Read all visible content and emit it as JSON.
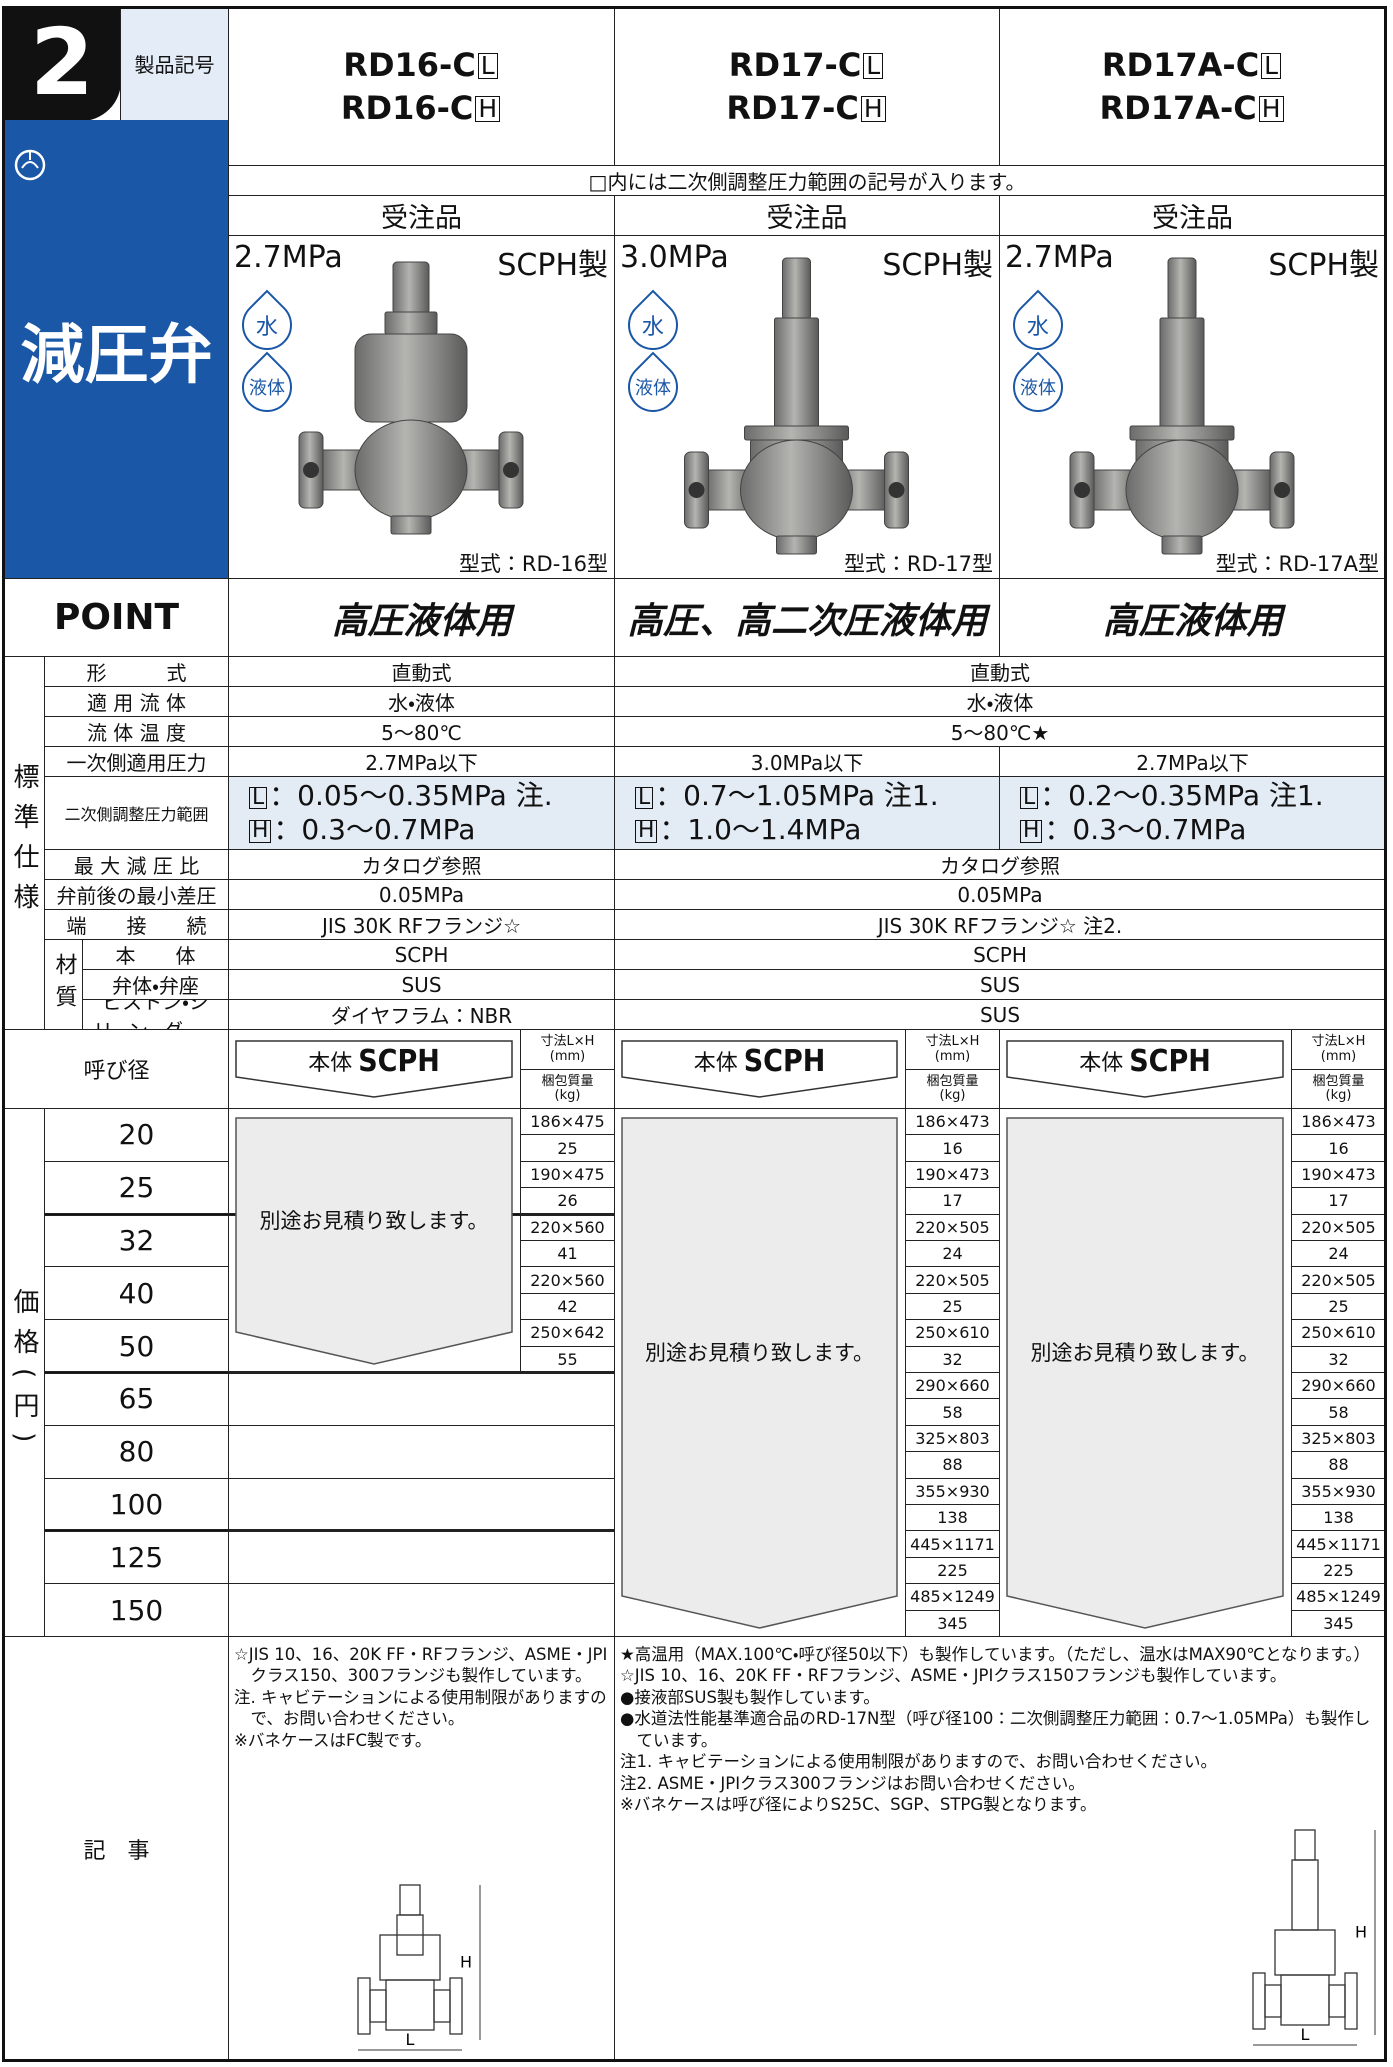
{
  "badge": {
    "number": "2",
    "label": "製品記号"
  },
  "category": "減圧弁",
  "products": [
    {
      "codes": [
        {
          "prefix": "RD16-C",
          "box": "L"
        },
        {
          "prefix": "RD16-C",
          "box": "H"
        }
      ],
      "order": "受注品",
      "pressure": "2.7MPa",
      "material": "SCPH製",
      "media": [
        "水",
        "液体"
      ],
      "model": "型式：RD-16型",
      "point": "高圧液体用"
    },
    {
      "codes": [
        {
          "prefix": "RD17-C",
          "box": "L"
        },
        {
          "prefix": "RD17-C",
          "box": "H"
        }
      ],
      "order": "受注品",
      "pressure": "3.0MPa",
      "material": "SCPH製",
      "media": [
        "水",
        "液体"
      ],
      "model": "型式：RD-17型",
      "point": "高圧、高二次圧液体用"
    },
    {
      "codes": [
        {
          "prefix": "RD17A-C",
          "box": "L"
        },
        {
          "prefix": "RD17A-C",
          "box": "H"
        }
      ],
      "order": "受注品",
      "pressure": "2.7MPa",
      "material": "SCPH製",
      "media": [
        "水",
        "液体"
      ],
      "model": "型式：RD-17A型",
      "point": "高圧液体用"
    }
  ],
  "box_note": "□内には二次側調整圧力範囲の記号が入ります。",
  "point_label": "POINT",
  "spec": {
    "label": "標準仕様",
    "material_label": "材質",
    "rows": [
      {
        "label": "形　　　式",
        "cells": [
          "直動式",
          "直動式"
        ]
      },
      {
        "label": "適 用 流 体",
        "cells": [
          "水・液体",
          "水・液体"
        ]
      },
      {
        "label": "流 体 温 度",
        "cells": [
          "5〜80℃",
          "5〜80℃★"
        ]
      },
      {
        "label": "一次側適用圧力",
        "cells": [
          "2.7MPa以下",
          "3.0MPa以下",
          "2.7MPa以下"
        ]
      },
      {
        "label": "二次側調整圧力範囲",
        "cells": [
          [
            {
              "box": "L",
              "text": "：0.05〜0.35MPa 注."
            },
            {
              "box": "H",
              "text": "：0.3〜0.7MPa"
            }
          ],
          [
            {
              "box": "L",
              "text": "：0.7〜1.05MPa 注1."
            },
            {
              "box": "H",
              "text": "：1.0〜1.4MPa"
            }
          ],
          [
            {
              "box": "L",
              "text": "：0.2〜0.35MPa 注1."
            },
            {
              "box": "H",
              "text": "：0.3〜0.7MPa"
            }
          ]
        ]
      },
      {
        "label": "最 大 減 圧 比",
        "cells": [
          "カタログ参照",
          "カタログ参照"
        ]
      },
      {
        "label": "弁前後の最小差圧",
        "cells": [
          "0.05MPa",
          "0.05MPa"
        ]
      },
      {
        "label": "端　　接　　続",
        "cells": [
          "JIS 30K RFフランジ☆",
          "JIS 30K RFフランジ☆ 注2."
        ]
      }
    ],
    "material_rows": [
      {
        "label": "本　　体",
        "cells": [
          "SCPH",
          "SCPH"
        ]
      },
      {
        "label": "弁体・弁座",
        "cells": [
          "SUS",
          "SUS"
        ]
      },
      {
        "label": "ピストン・シリンダー",
        "cells": [
          "ダイヤフラム：NBR",
          "SUS"
        ]
      }
    ]
  },
  "price": {
    "side_label": "価格(円)",
    "size_label": "呼び径",
    "body_label": "本体",
    "body_material": "SCPH",
    "dim_header": [
      "寸法L×H",
      "(mm)"
    ],
    "weight_header": [
      "梱包質量",
      "(kg)"
    ],
    "sizes": [
      "20",
      "25",
      "32",
      "40",
      "50",
      "65",
      "80",
      "100",
      "125",
      "150"
    ],
    "columns": [
      {
        "quote": "別途お見積り致します。",
        "rows": [
          [
            "186×475",
            "25"
          ],
          [
            "190×475",
            "26"
          ],
          [
            "220×560",
            "41"
          ],
          [
            "220×560",
            "42"
          ],
          [
            "250×642",
            "55"
          ]
        ]
      },
      {
        "quote": "別途お見積り致します。",
        "rows": [
          [
            "186×473",
            "16"
          ],
          [
            "190×473",
            "17"
          ],
          [
            "220×505",
            "24"
          ],
          [
            "220×505",
            "25"
          ],
          [
            "250×610",
            "32"
          ],
          [
            "290×660",
            "58"
          ],
          [
            "325×803",
            "88"
          ],
          [
            "355×930",
            "138"
          ],
          [
            "445×1171",
            "225"
          ],
          [
            "485×1249",
            "345"
          ]
        ]
      },
      {
        "quote": "別途お見積り致します。",
        "rows": [
          [
            "186×473",
            "16"
          ],
          [
            "190×473",
            "17"
          ],
          [
            "220×505",
            "24"
          ],
          [
            "220×505",
            "25"
          ],
          [
            "250×610",
            "32"
          ],
          [
            "290×660",
            "58"
          ],
          [
            "325×803",
            "88"
          ],
          [
            "355×930",
            "138"
          ],
          [
            "445×1171",
            "225"
          ],
          [
            "485×1249",
            "345"
          ]
        ]
      }
    ]
  },
  "notes": {
    "label": "記　事",
    "col1": [
      "☆JIS 10、16、20K FF・RFフランジ、ASME・JPIクラス150、300フランジも製作しています。",
      "注. キャビテーションによる使用制限がありますので、お問い合わせください。",
      "※バネケースはFC製です。"
    ],
    "col23": [
      "★高温用（MAX.100℃・呼び径50以下）も製作しています。（ただし、温水はMAX90℃となります。）",
      "☆JIS 10、16、20K FF・RFフランジ、ASME・JPIクラス150フランジも製作しています。",
      "●接液部SUS製も製作しています。",
      "●水道法性能基準適合品のRD-17N型（呼び径100：二次側調整圧力範囲：0.7〜1.05MPa）も製作しています。",
      "注1. キャビテーションによる使用制限がありますので、お問い合わせください。",
      "注2. ASME・JPIクラス300フランジはお問い合わせください。",
      "※バネケースは呼び径によりS25C、SGP、STPG製となります。"
    ],
    "dim_labels": [
      "H",
      "L"
    ]
  }
}
